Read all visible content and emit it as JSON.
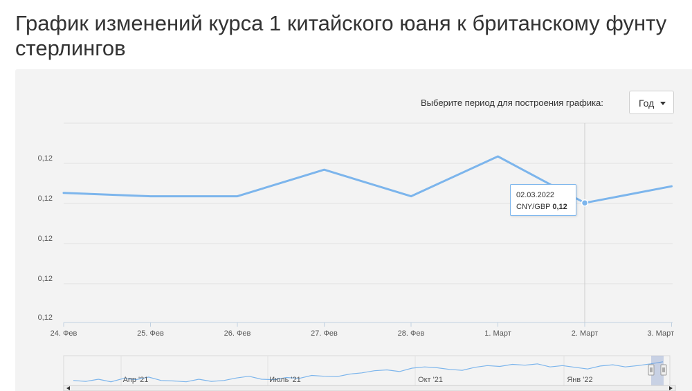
{
  "page": {
    "title": "График изменений курса 1 китайского юаня к британскому фунту стерлингов"
  },
  "controls": {
    "period_label": "Выберите период для построения графика:",
    "period_value": "Год"
  },
  "tooltip": {
    "date": "02.03.2022",
    "series": "CNY/GBP",
    "value": "0,12"
  },
  "chart_data": {
    "type": "line",
    "x": [
      "24. Фев",
      "25. Фев",
      "26. Фев",
      "27. Фев",
      "28. Фев",
      "1. Март",
      "2. Март",
      "3. Март"
    ],
    "series": [
      {
        "values": [
          0.1204,
          0.1203,
          0.1203,
          0.1211,
          0.1203,
          0.1215,
          0.1201,
          0.1206
        ]
      }
    ],
    "y_tick_labels": [
      "0,12",
      "0,12",
      "0,12",
      "0,12",
      "0,12"
    ],
    "x_tick_labels": [
      "24. Фев",
      "25. Фев",
      "26. Фев",
      "27. Фев",
      "28. Фев",
      "1. Март",
      "2. Март",
      "3. Март"
    ],
    "ylim": [
      0.1165,
      0.1225
    ],
    "grid": true,
    "line_color": "#7cb5ec",
    "hovered_index": 6,
    "navigator": {
      "labels": [
        "Апр '21",
        "Июль '21",
        "Окт '21",
        "Янв '22"
      ],
      "values": [
        0.116,
        0.1158,
        0.1163,
        0.1157,
        0.1165,
        0.1162,
        0.1168,
        0.116,
        0.1159,
        0.1157,
        0.1163,
        0.1158,
        0.116,
        0.1166,
        0.117,
        0.1163,
        0.1162,
        0.1167,
        0.1165,
        0.1172,
        0.117,
        0.1169,
        0.1175,
        0.1178,
        0.1183,
        0.1185,
        0.1181,
        0.1189,
        0.1192,
        0.119,
        0.1186,
        0.1184,
        0.1191,
        0.1195,
        0.1193,
        0.1198,
        0.1196,
        0.1199,
        0.1192,
        0.1195,
        0.1191,
        0.1187,
        0.1194,
        0.1197,
        0.1192,
        0.1195,
        0.1199,
        0.1204
      ]
    }
  }
}
